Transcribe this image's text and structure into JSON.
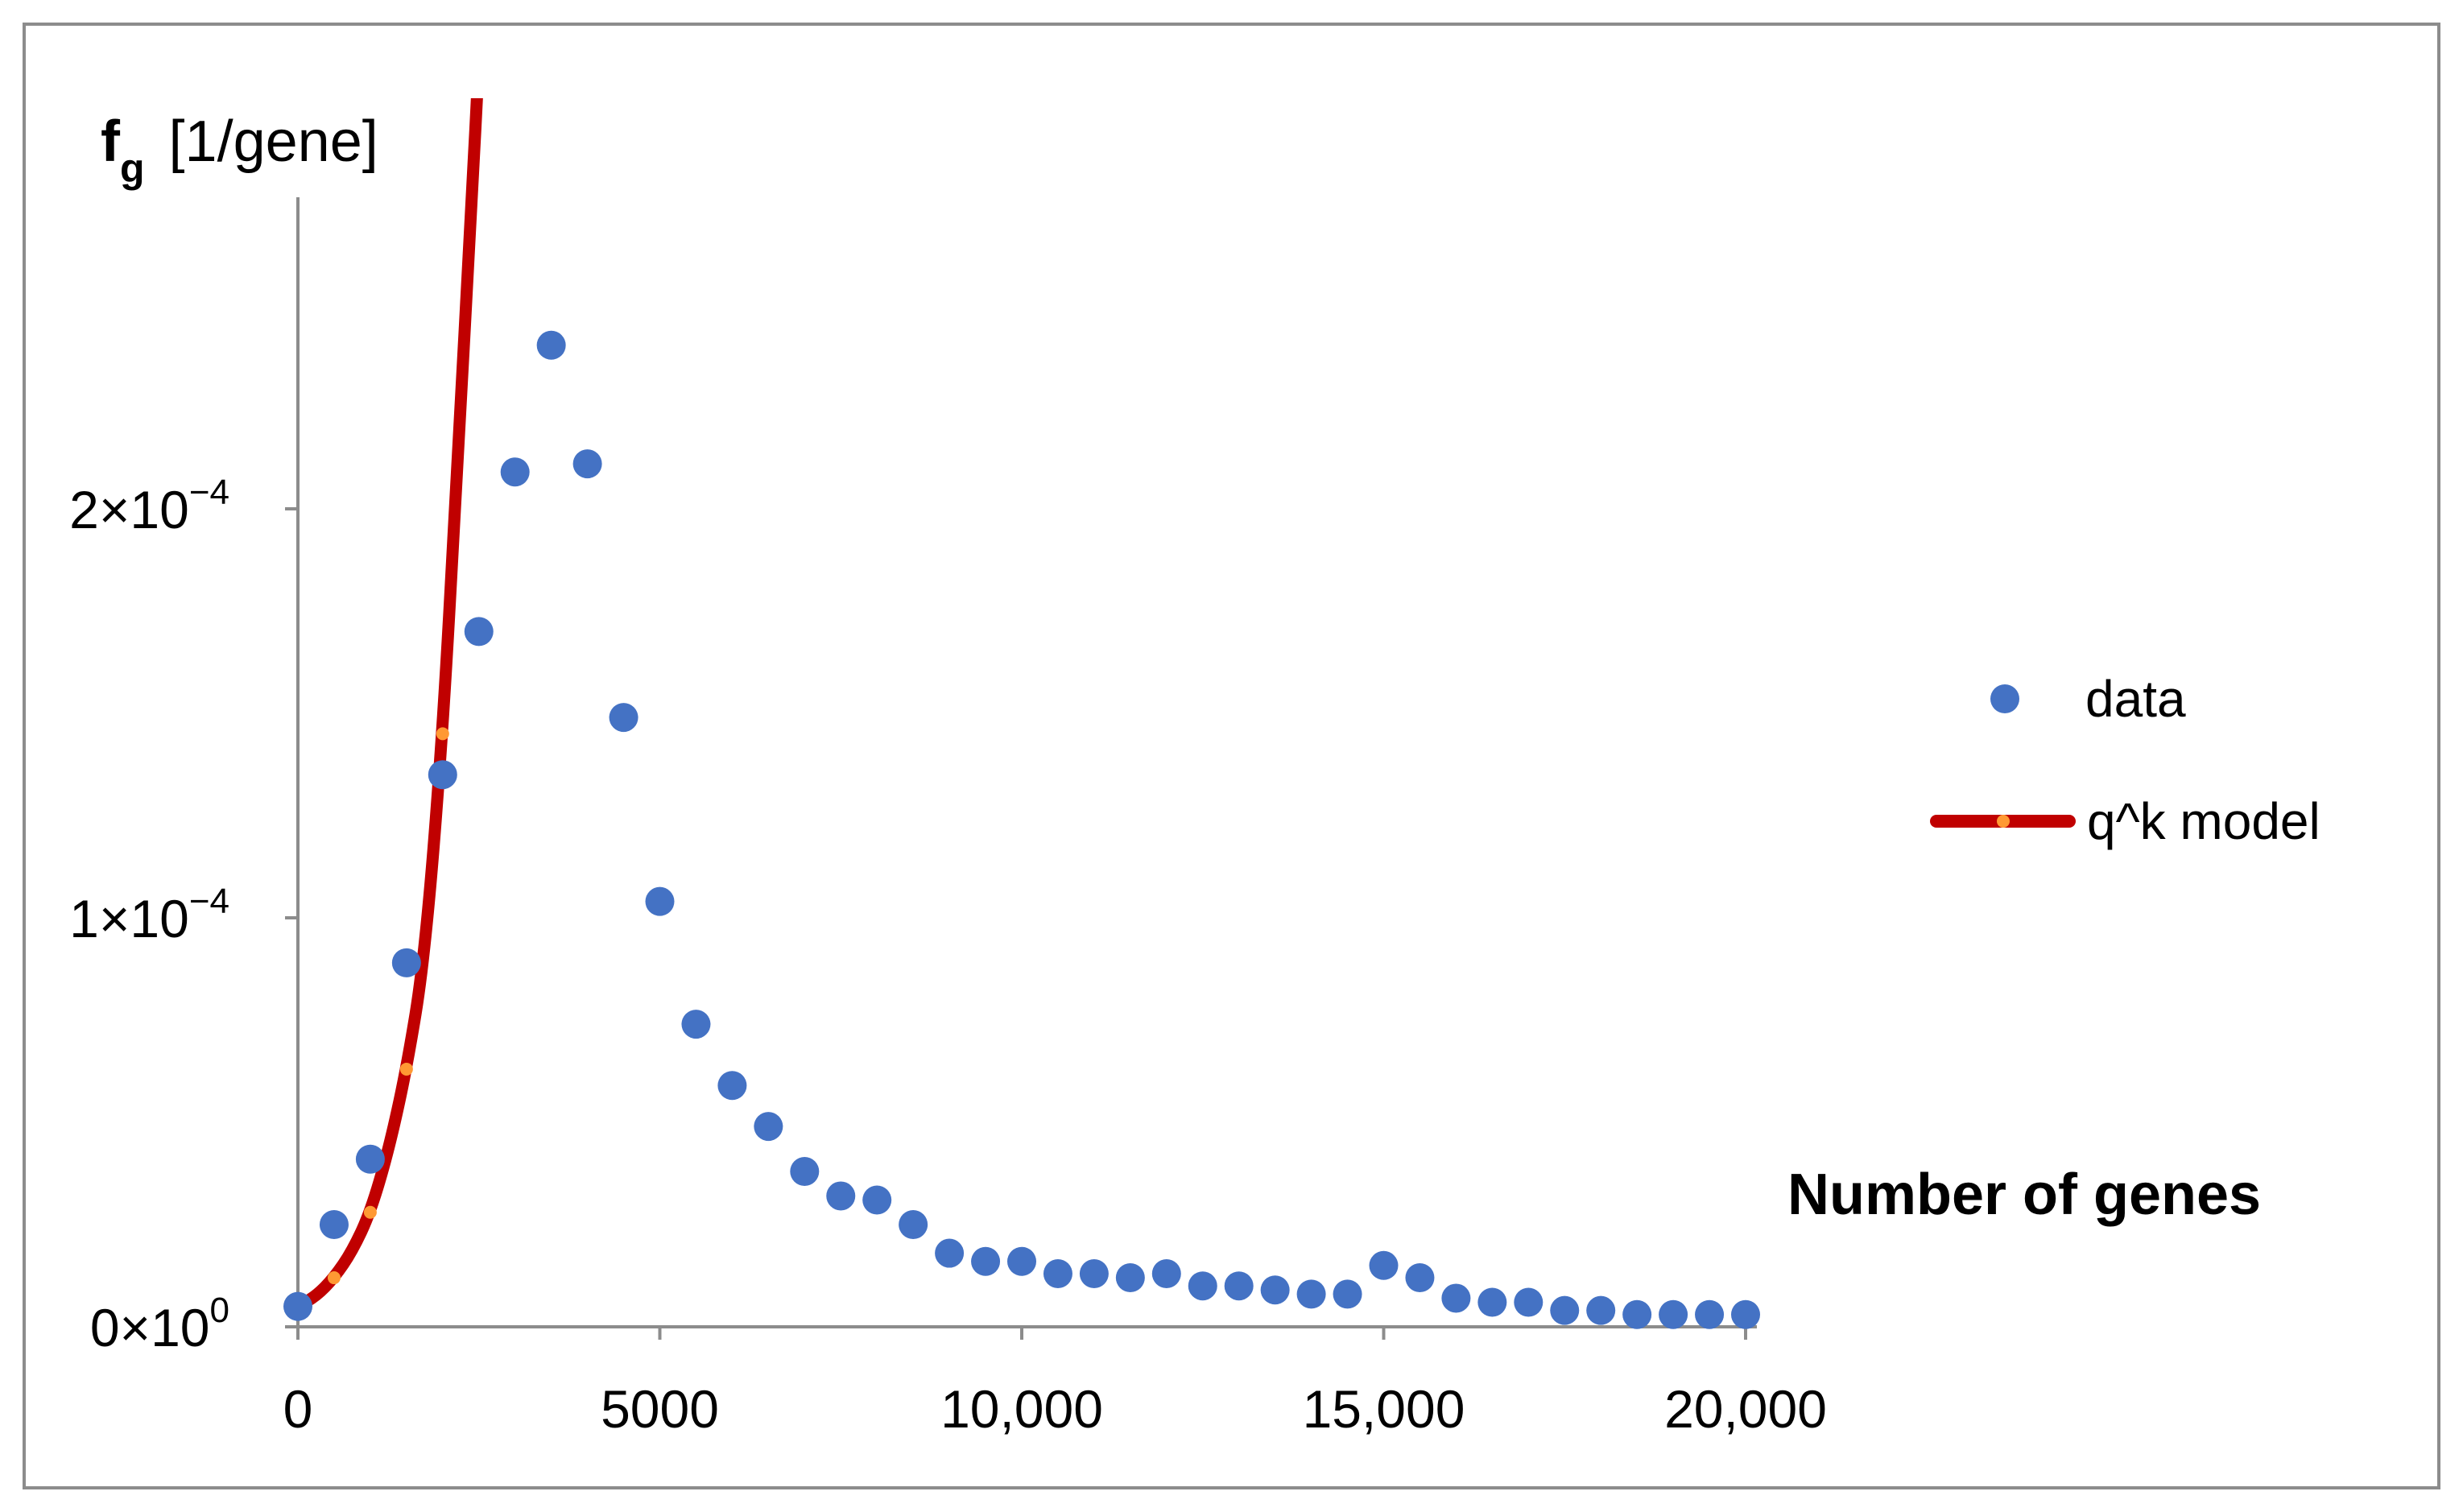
{
  "chart_data": {
    "type": "scatter",
    "title": "",
    "xlabel": "Number of genes",
    "ylabel": {
      "symbol": "f",
      "subscript": "g",
      "unit": "[1/gene]"
    },
    "xlim": [
      0,
      20000
    ],
    "ylim": [
      0,
      0.00031
    ],
    "grid": false,
    "legend_position": "right",
    "x_ticks": [
      {
        "value": 0,
        "label": "0"
      },
      {
        "value": 5000,
        "label": "5000"
      },
      {
        "value": 10000,
        "label": "10,000"
      },
      {
        "value": 15000,
        "label": "15,000"
      },
      {
        "value": 20000,
        "label": "20,000"
      }
    ],
    "y_ticks": [
      {
        "value": 0,
        "label": "0×10",
        "exp": "0"
      },
      {
        "value": 0.0001,
        "label": "1×10",
        "exp": "−4"
      },
      {
        "value": 0.0002,
        "label": "2×10",
        "exp": "−4"
      }
    ],
    "series": [
      {
        "name": "data",
        "kind": "scatter",
        "color": "#4472c4",
        "points": [
          [
            0,
            5e-06
          ],
          [
            500,
            2.5e-05
          ],
          [
            1000,
            4.1e-05
          ],
          [
            1500,
            8.9e-05
          ],
          [
            2000,
            0.000135
          ],
          [
            2500,
            0.00017
          ],
          [
            3000,
            0.000209
          ],
          [
            3500,
            0.00024
          ],
          [
            4000,
            0.000211
          ],
          [
            4500,
            0.000149
          ],
          [
            5000,
            0.000104
          ],
          [
            5500,
            7.4e-05
          ],
          [
            6000,
            5.9e-05
          ],
          [
            6500,
            4.9e-05
          ],
          [
            7000,
            3.8e-05
          ],
          [
            7500,
            3.2e-05
          ],
          [
            8000,
            3.1e-05
          ],
          [
            8500,
            2.5e-05
          ],
          [
            9000,
            1.8e-05
          ],
          [
            9500,
            1.6e-05
          ],
          [
            10000,
            1.6e-05
          ],
          [
            10500,
            1.3e-05
          ],
          [
            11000,
            1.3e-05
          ],
          [
            11500,
            1.2e-05
          ],
          [
            12000,
            1.3e-05
          ],
          [
            12500,
            1e-05
          ],
          [
            13000,
            1e-05
          ],
          [
            13500,
            9e-06
          ],
          [
            14000,
            8e-06
          ],
          [
            14500,
            8e-06
          ],
          [
            15000,
            1.5e-05
          ],
          [
            15500,
            1.2e-05
          ],
          [
            16000,
            7e-06
          ],
          [
            16500,
            6e-06
          ],
          [
            17000,
            6e-06
          ],
          [
            17500,
            4e-06
          ],
          [
            18000,
            4e-06
          ],
          [
            18500,
            3e-06
          ],
          [
            19000,
            3e-06
          ],
          [
            19500,
            3e-06
          ],
          [
            20000,
            3e-06
          ]
        ]
      },
      {
        "name": "q^k model",
        "kind": "line",
        "color": "#c00000",
        "marker_color": "#ff9933",
        "points": [
          [
            0,
            5e-06
          ],
          [
            250,
            7.5e-06
          ],
          [
            500,
            1.2e-05
          ],
          [
            750,
            1.85e-05
          ],
          [
            1000,
            2.8e-05
          ],
          [
            1250,
            4.3e-05
          ],
          [
            1500,
            6.3e-05
          ],
          [
            1750,
            9e-05
          ],
          [
            2000,
            0.000145
          ],
          [
            2200,
            0.00021
          ],
          [
            2400,
            0.000275
          ],
          [
            2500,
            0.00031
          ]
        ],
        "marker_points": [
          [
            500,
            1.2e-05
          ],
          [
            1000,
            2.8e-05
          ],
          [
            1500,
            6.3e-05
          ],
          [
            2000,
            0.000145
          ]
        ]
      }
    ]
  }
}
